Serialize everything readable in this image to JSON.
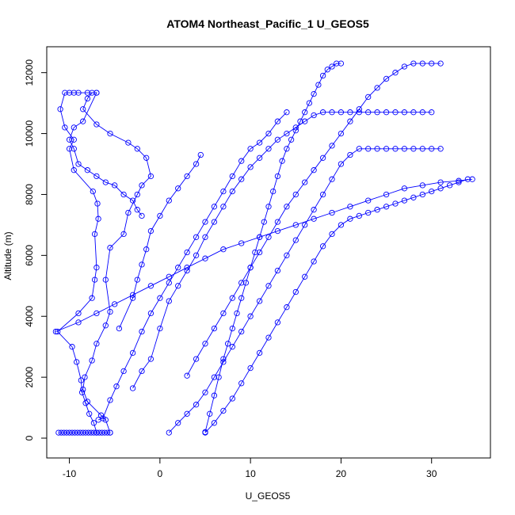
{
  "chart_data": {
    "type": "scatter",
    "title": "ATOM4 Northeast_Pacific_1 U_GEOS5",
    "xlabel": "U_GEOS5",
    "ylabel": "Altitude (m)",
    "xlim": [
      -12.5,
      36.5
    ],
    "ylim": [
      -650,
      12850
    ],
    "x_ticks": [
      -10,
      0,
      10,
      20,
      30
    ],
    "y_ticks": [
      0,
      2000,
      4000,
      6000,
      8000,
      10000,
      12000
    ],
    "grid": false,
    "legend": "none",
    "line_color": "#0000ff",
    "marker": "open-circle",
    "series": [
      {
        "x": [
          -7.0,
          -7.3,
          -7.8,
          -8.2,
          -8.6,
          -8.7,
          -9.2,
          -9.7,
          -11.3,
          -9.0,
          -7.5,
          -7.2,
          -7.0,
          -7.2,
          -6.8,
          -6.9,
          -7.4,
          -9.5,
          -10.0,
          -9.5,
          -10.5,
          -11.0,
          -10.5,
          -10.0,
          -9.5,
          -9.0,
          -8.0,
          -7.0,
          -8.5,
          -9.5,
          -10.0,
          -9.5,
          -9.0,
          -8.0,
          -7.0,
          -6.0,
          -5.0,
          -4.0,
          -3.0,
          -2.5,
          -2.0
        ],
        "y": [
          180,
          500,
          800,
          1150,
          1500,
          1900,
          2500,
          3000,
          3500,
          4100,
          4600,
          5200,
          5600,
          6700,
          7200,
          7700,
          8100,
          8800,
          9500,
          9800,
          10200,
          10800,
          11340,
          11340,
          11340,
          11340,
          11340,
          11340,
          10400,
          10200,
          9800,
          9500,
          9000,
          8800,
          8600,
          8400,
          8300,
          8000,
          7800,
          7500,
          7300
        ]
      },
      {
        "x": [
          -5.5,
          -6.0,
          -6.5,
          -8.0,
          -8.5,
          -8.3,
          -7.5,
          -7.0,
          -6.0,
          -5.5,
          -6.0,
          -5.5,
          -4.0,
          -3.5,
          -2.5,
          -2.0,
          -1.0,
          -1.5,
          -2.5,
          -3.5,
          -5.5,
          -7.0,
          -8.5,
          -8.0,
          -7.5,
          -7.0
        ],
        "y": [
          180,
          600,
          750,
          1200,
          1600,
          2000,
          2550,
          3100,
          3700,
          4150,
          5200,
          6250,
          6700,
          7400,
          8000,
          8300,
          8600,
          9200,
          9500,
          9700,
          10000,
          10300,
          10800,
          11150,
          11340,
          11340
        ]
      },
      {
        "x": [
          -5.5,
          -5.8,
          -6.1,
          -6.4,
          -6.7,
          -7.0,
          -7.3,
          -7.6,
          -7.9,
          -8.2,
          -8.5,
          -8.8,
          -9.1,
          -9.4,
          -9.7,
          -10.0,
          -10.3,
          -10.6,
          -10.9,
          -11.2
        ],
        "y": [
          180,
          180,
          180,
          180,
          180,
          180,
          180,
          180,
          180,
          180,
          180,
          180,
          180,
          180,
          180,
          180,
          180,
          180,
          180,
          180
        ]
      },
      {
        "x": [
          -6.8,
          -6.3,
          -5.5,
          -4.8,
          -4.0,
          -3.0,
          -2.0,
          -1.0,
          0.0,
          1.0,
          2.0,
          3.0,
          4.0,
          5.0,
          6.0,
          7.0,
          8.0,
          9.0,
          10.0,
          11.0,
          12.0,
          13.0,
          14.0
        ],
        "y": [
          600,
          650,
          1250,
          1700,
          2200,
          2800,
          3500,
          4100,
          4600,
          5100,
          5600,
          6100,
          6600,
          7100,
          7600,
          8100,
          8600,
          9100,
          9500,
          9700,
          10000,
          10400,
          10700
        ]
      },
      {
        "x": [
          -4.5,
          -3.0,
          -2.5,
          -2.0,
          -1.5,
          -1.0,
          0.0,
          1.0,
          2.0,
          3.0,
          4.0,
          4.5
        ],
        "y": [
          3600,
          4600,
          5200,
          5700,
          6200,
          6800,
          7300,
          7800,
          8200,
          8600,
          9000,
          9300
        ]
      },
      {
        "x": [
          -3.0,
          -2.0,
          -1.0,
          0.0,
          1.0,
          2.0,
          3.0,
          4.0,
          5.0,
          6.0,
          7.0,
          8.0,
          9.0,
          10.0,
          11.0,
          12.0,
          13.0,
          14.0,
          15.0,
          16.0,
          17.0,
          18.0,
          19.0,
          20.0,
          21.0,
          22.0,
          23.0,
          24.0,
          25.0,
          26.0,
          27.0,
          28.0,
          29.0,
          30.0
        ],
        "y": [
          1640,
          2200,
          2600,
          3600,
          4500,
          5000,
          5500,
          6000,
          6600,
          7100,
          7600,
          8100,
          8500,
          8900,
          9200,
          9500,
          9800,
          10000,
          10200,
          10400,
          10600,
          10700,
          10700,
          10700,
          10700,
          10700,
          10700,
          10700,
          10700,
          10700,
          10700,
          10700,
          10700,
          10700
        ]
      },
      {
        "x": [
          -11.5,
          -9.0,
          -7.0,
          -5.0,
          -3.0,
          -1.0,
          1.0,
          3.0,
          5.0,
          7.0,
          9.0,
          11.0,
          13.0,
          15.0,
          17.0,
          19.0,
          21.0,
          23.0,
          25.0,
          27.0,
          29.0,
          31.0,
          33.0,
          34.5
        ],
        "y": [
          3500,
          3800,
          4100,
          4400,
          4700,
          5000,
          5300,
          5600,
          5900,
          6200,
          6400,
          6600,
          6800,
          7000,
          7200,
          7400,
          7600,
          7800,
          8000,
          8200,
          8300,
          8400,
          8450,
          8500
        ]
      },
      {
        "x": [
          1.0,
          2.0,
          3.0,
          4.0,
          5.0,
          6.0,
          7.0,
          8.0,
          9.0,
          10.0,
          11.0,
          12.0,
          13.0,
          14.0,
          15.0,
          16.0,
          17.0,
          18.0,
          19.0,
          20.0,
          21.0,
          22.0,
          23.0,
          24.0,
          25.0,
          26.0,
          27.0,
          28.0,
          29.0,
          30.0,
          31.0
        ],
        "y": [
          180,
          500,
          800,
          1100,
          1500,
          2000,
          2500,
          3000,
          3500,
          4000,
          4500,
          5000,
          5500,
          6000,
          6500,
          7000,
          7500,
          8000,
          8500,
          9000,
          9300,
          9500,
          9500,
          9500,
          9500,
          9500,
          9500,
          9500,
          9500,
          9500,
          9500
        ]
      },
      {
        "x": [
          5.0,
          6.0,
          7.0,
          8.0,
          9.0,
          10.0,
          11.0,
          12.0,
          13.0,
          14.0,
          15.0,
          16.0,
          17.0,
          18.0,
          19.0,
          20.0,
          21.0,
          22.0,
          23.0,
          24.0,
          25.0,
          26.0,
          27.0,
          28.0,
          29.0,
          30.0,
          31.0,
          32.0,
          33.0,
          34.0
        ],
        "y": [
          180,
          500,
          900,
          1300,
          1800,
          2300,
          2800,
          3300,
          3800,
          4300,
          4800,
          5300,
          5800,
          6300,
          6700,
          7000,
          7200,
          7300,
          7400,
          7500,
          7600,
          7700,
          7800,
          7900,
          8000,
          8100,
          8200,
          8300,
          8400,
          8500
        ]
      },
      {
        "x": [
          3.0,
          4.0,
          5.0,
          6.0,
          7.0,
          8.0,
          9.0,
          10.0,
          11.0,
          12.0,
          13.0,
          14.0,
          15.0,
          16.0,
          17.0,
          18.0,
          19.0,
          20.0,
          21.0,
          22.0,
          23.0,
          24.0,
          25.0,
          26.0,
          27.0,
          28.0,
          29.0,
          30.0,
          31.0
        ],
        "y": [
          2050,
          2600,
          3100,
          3600,
          4100,
          4600,
          5100,
          5600,
          6100,
          6600,
          7100,
          7600,
          8000,
          8400,
          8800,
          9200,
          9600,
          10000,
          10400,
          10800,
          11200,
          11500,
          11800,
          12000,
          12200,
          12300,
          12300,
          12300,
          12300
        ]
      },
      {
        "x": [
          5.0,
          5.5,
          6.0,
          6.5,
          7.0,
          7.5,
          8.0,
          8.5,
          9.0,
          9.5,
          10.0,
          10.5,
          11.0,
          11.5,
          12.0,
          12.5,
          13.0,
          13.5,
          14.0,
          14.5,
          15.0,
          15.5,
          16.0,
          16.5,
          17.0,
          17.5,
          18.0,
          18.5,
          19.0,
          19.5,
          20.0
        ],
        "y": [
          200,
          800,
          1400,
          2000,
          2600,
          3100,
          3600,
          4100,
          4600,
          5100,
          5600,
          6100,
          6600,
          7100,
          7600,
          8100,
          8600,
          9100,
          9500,
          9800,
          10100,
          10400,
          10700,
          11000,
          11300,
          11600,
          11900,
          12100,
          12200,
          12300,
          12300
        ]
      }
    ]
  }
}
